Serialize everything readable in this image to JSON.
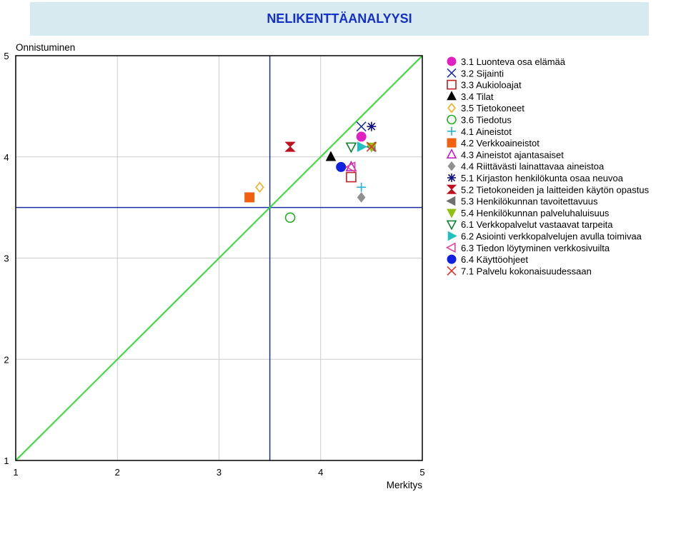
{
  "header": {
    "title": "NELIKENTTÄANALYYSI"
  },
  "chart_data": {
    "type": "scatter",
    "title": "",
    "xlabel": "Merkitys",
    "ylabel": "Onnistuminen",
    "xlim": [
      1,
      5
    ],
    "ylim": [
      1,
      5
    ],
    "xticks": [
      "1",
      "2",
      "3",
      "4",
      "5"
    ],
    "yticks": [
      "1",
      "2",
      "3",
      "4",
      "5"
    ],
    "grid": true,
    "quadrant_lines": {
      "x": 3.5,
      "y": 3.5,
      "color": "#1a2fa0"
    },
    "diagonal": {
      "from": [
        1,
        1
      ],
      "to": [
        5,
        5
      ],
      "color": "#33dd33"
    },
    "legend_position": "right",
    "series": [
      {
        "name": "3.1 Luonteva osa elämää",
        "x": 4.4,
        "y": 4.2,
        "marker": "circle-filled",
        "color": "#e020c0"
      },
      {
        "name": "3.2 Sijainti",
        "x": 4.4,
        "y": 4.3,
        "marker": "x",
        "color": "#2030a0"
      },
      {
        "name": "3.3 Aukioloajat",
        "x": 4.3,
        "y": 3.8,
        "marker": "square-open",
        "color": "#c02020"
      },
      {
        "name": "3.4 Tilat",
        "x": 4.1,
        "y": 4.0,
        "marker": "triangle-filled",
        "color": "#000000"
      },
      {
        "name": "3.5 Tietokoneet",
        "x": 3.4,
        "y": 3.7,
        "marker": "diamond-open",
        "color": "#f0b020"
      },
      {
        "name": "3.6 Tiedotus",
        "x": 3.7,
        "y": 3.4,
        "marker": "circle-open",
        "color": "#20b020"
      },
      {
        "name": "4.1 Aineistot",
        "x": 4.4,
        "y": 3.7,
        "marker": "plus",
        "color": "#20b0d0"
      },
      {
        "name": "4.2 Verkkoaineistot",
        "x": 3.3,
        "y": 3.6,
        "marker": "square-filled",
        "color": "#f06010"
      },
      {
        "name": "4.3 Aineistot ajantasaiset",
        "x": 4.3,
        "y": 3.9,
        "marker": "triangle-open",
        "color": "#c020c0"
      },
      {
        "name": "4.4 Riittävästi lainattavaa aineistoa",
        "x": 4.4,
        "y": 3.6,
        "marker": "diamond-filled",
        "color": "#909090"
      },
      {
        "name": "5.1 Kirjaston henkilökunta osaa neuvoa",
        "x": 4.5,
        "y": 4.3,
        "marker": "asterisk",
        "color": "#101080"
      },
      {
        "name": "5.2 Tietokoneiden ja laitteiden käytön opastus",
        "x": 3.7,
        "y": 4.1,
        "marker": "hourglass",
        "color": "#c01020"
      },
      {
        "name": "5.3 Henkilökunnan tavoitettavuus",
        "x": 4.5,
        "y": 4.1,
        "marker": "triangle-left-filled",
        "color": "#707070"
      },
      {
        "name": "5.4 Henkilökunnan palveluhaluisuus",
        "x": 4.5,
        "y": 4.1,
        "marker": "triangle-down-filled",
        "color": "#90c010"
      },
      {
        "name": "6.1 Verkkopalvelut vastaavat tarpeita",
        "x": 4.3,
        "y": 4.1,
        "marker": "triangle-down-open",
        "color": "#108030"
      },
      {
        "name": "6.2 Asiointi verkkopalvelujen avulla toimivaa",
        "x": 4.4,
        "y": 4.1,
        "marker": "triangle-right-filled",
        "color": "#20c0c0"
      },
      {
        "name": "6.3 Tiedon löytyminen verkkosivuilta",
        "x": 4.3,
        "y": 3.9,
        "marker": "triangle-left-open",
        "color": "#e040a0"
      },
      {
        "name": "6.4 Käyttöohjeet",
        "x": 4.2,
        "y": 3.9,
        "marker": "circle-filled",
        "color": "#1020e0"
      },
      {
        "name": "7.1 Palvelu kokonaisuudessaan",
        "x": 4.5,
        "y": 4.1,
        "marker": "x",
        "color": "#e03030"
      }
    ]
  }
}
